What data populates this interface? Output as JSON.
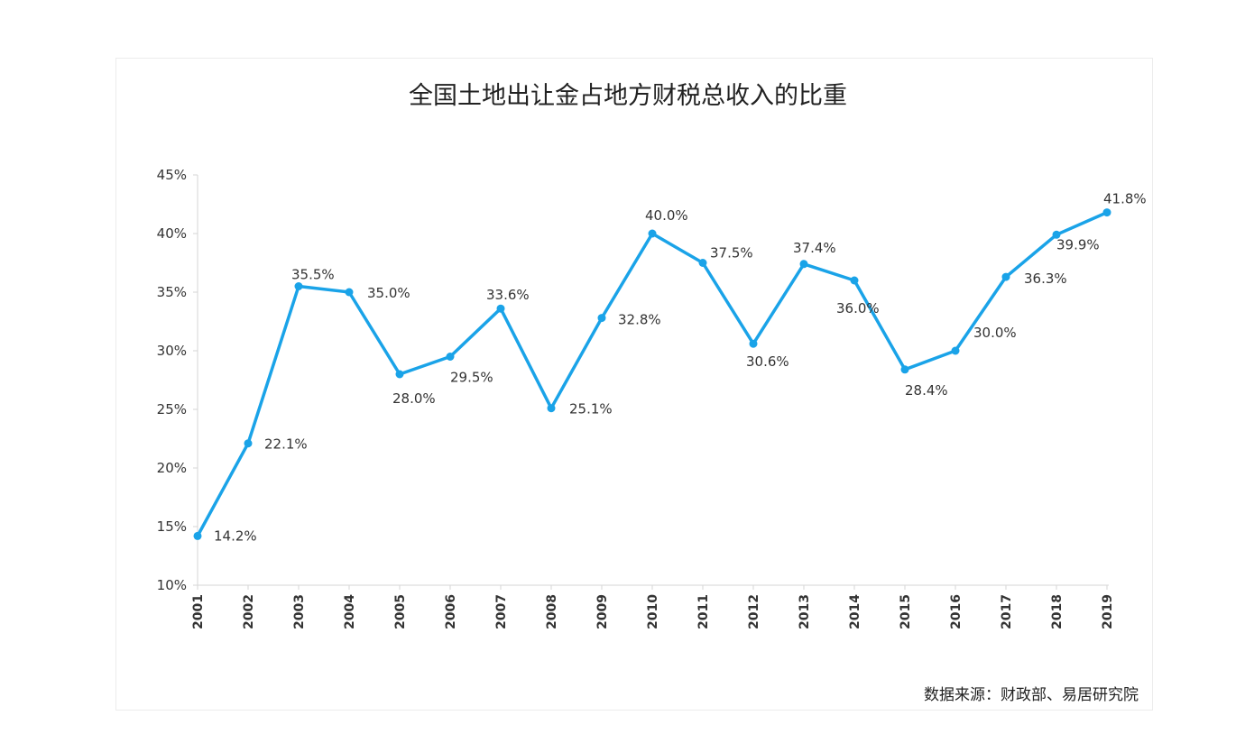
{
  "chart_data": {
    "type": "line",
    "title": "全国土地出让金占地方财税总收入的比重",
    "source": "数据来源：财政部、易居研究院",
    "categories": [
      "2001",
      "2002",
      "2003",
      "2004",
      "2005",
      "2006",
      "2007",
      "2008",
      "2009",
      "2010",
      "2011",
      "2012",
      "2013",
      "2014",
      "2015",
      "2016",
      "2017",
      "2018",
      "2019"
    ],
    "series": [
      {
        "values": [
          14.2,
          22.1,
          35.5,
          35.0,
          28.0,
          29.5,
          33.6,
          25.1,
          32.8,
          40.0,
          37.5,
          30.6,
          37.4,
          36.0,
          28.4,
          30.0,
          36.3,
          39.9,
          41.8
        ],
        "data_labels": [
          "14.2%",
          "22.1%",
          "35.5%",
          "35.0%",
          "28.0%",
          "29.5%",
          "33.6%",
          "25.1%",
          "32.8%",
          "40.0%",
          "37.5%",
          "30.6%",
          "37.4%",
          "36.0%",
          "28.4%",
          "30.0%",
          "36.3%",
          "39.9%",
          "41.8%"
        ],
        "color": "#1aa3e8"
      }
    ],
    "ylim": [
      10,
      45
    ],
    "yticks": [
      "10%",
      "15%",
      "20%",
      "25%",
      "30%",
      "35%",
      "40%",
      "45%"
    ],
    "xlabel": "",
    "ylabel": "",
    "grid": false,
    "legend": false
  }
}
